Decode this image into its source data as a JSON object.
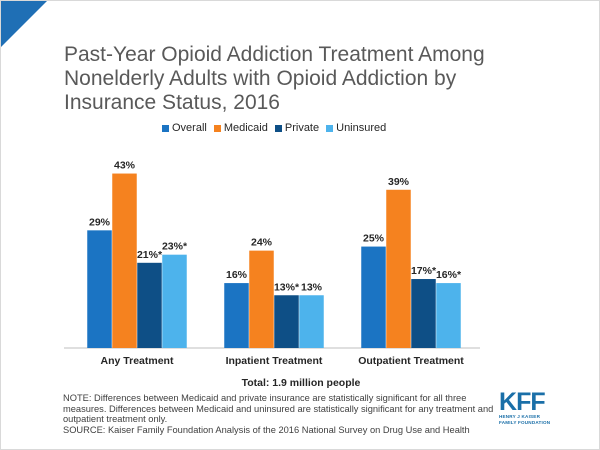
{
  "title": "Past-Year Opioid Addiction Treatment Among Nonelderly Adults with Opioid Addiction by Insurance Status, 2016",
  "total_label": "Total: 1.9 million people",
  "notes": [
    "NOTE: Differences between Medicaid and private insurance are statistically significant for all three measures. Differences between Medicaid and uninsured are statistically significant for any treatment and outpatient treatment only.",
    "SOURCE: Kaiser Family Foundation Analysis of the 2016 National Survey on Drug Use and Health"
  ],
  "logo": {
    "letters": [
      "K",
      "F",
      "F"
    ],
    "line1": "HENRY J KAISER",
    "line2": "FAMILY FOUNDATION",
    "color": "#1a6fa8"
  },
  "colors": {
    "corner": "#1f6fb5",
    "axis": "#bfbfbf"
  },
  "chart_data": {
    "type": "bar",
    "categories": [
      "Any Treatment",
      "Inpatient Treatment",
      "Outpatient Treatment"
    ],
    "series": [
      {
        "name": "Overall",
        "color": "#1b74c3",
        "values": [
          29,
          16,
          25
        ],
        "labels": [
          "29%",
          "16%",
          "25%"
        ]
      },
      {
        "name": "Medicaid",
        "color": "#f5821f",
        "values": [
          43,
          24,
          39
        ],
        "labels": [
          "43%",
          "24%",
          "39%"
        ]
      },
      {
        "name": "Private",
        "color": "#0e4f86",
        "values": [
          21,
          13,
          17
        ],
        "labels": [
          "21%*",
          "13%*",
          "17%*"
        ]
      },
      {
        "name": "Uninsured",
        "color": "#4db3ec",
        "values": [
          23,
          13,
          16
        ],
        "labels": [
          "23%*",
          "13%",
          "16%*"
        ]
      }
    ],
    "ylim": [
      0,
      50
    ],
    "grid": false,
    "legend": "top"
  }
}
